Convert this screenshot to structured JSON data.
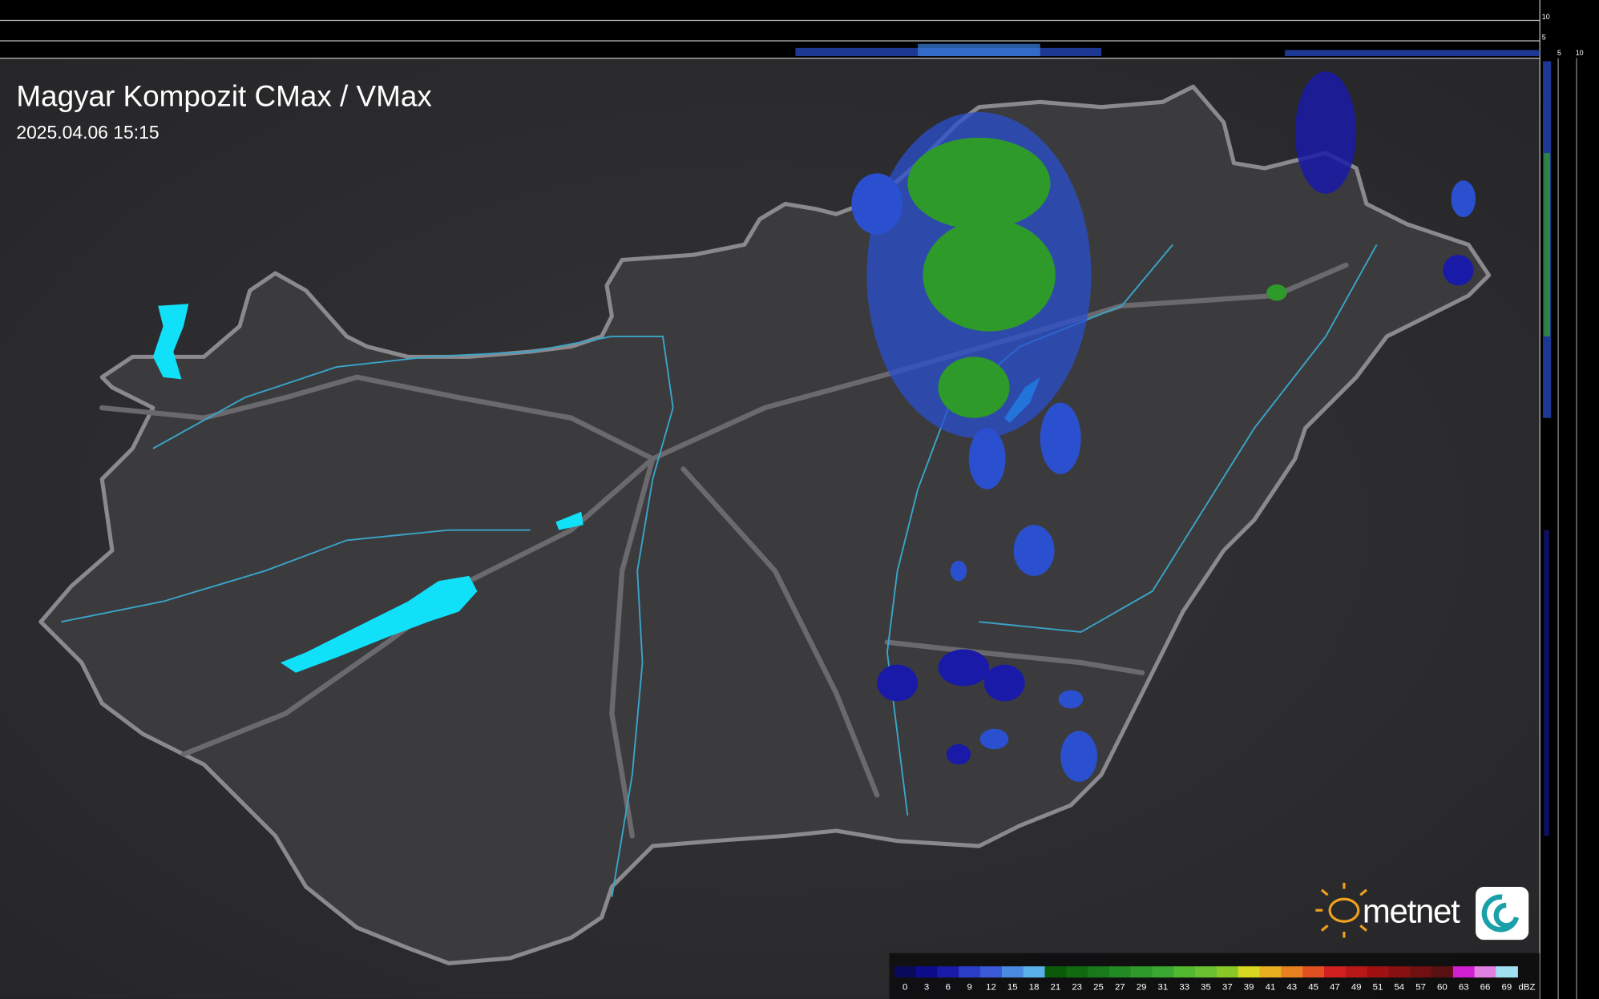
{
  "header": {
    "title": "Magyar Kompozit CMax / VMax",
    "timestamp": "2025.04.06 15:15"
  },
  "side_scale": {
    "top_labels": [
      "10",
      "5"
    ],
    "bottom_labels": [
      "5",
      "10"
    ]
  },
  "logo": {
    "text": "metnet"
  },
  "legend": {
    "labels": [
      0,
      3,
      6,
      9,
      12,
      15,
      18,
      21,
      23,
      25,
      27,
      29,
      31,
      33,
      35,
      37,
      39,
      41,
      43,
      45,
      47,
      49,
      51,
      54,
      57,
      60,
      63,
      66,
      69
    ],
    "colors": [
      "#0a0a5a",
      "#0c0c8a",
      "#1a1aa8",
      "#2a3ec8",
      "#3a5ad8",
      "#4a8ae0",
      "#5ab0e8",
      "#0a5a0a",
      "#0f6a10",
      "#187a18",
      "#228a22",
      "#2e9a2a",
      "#3aa830",
      "#52b830",
      "#6ac030",
      "#8ac828",
      "#d8d820",
      "#e8b020",
      "#e88020",
      "#e05020",
      "#d02020",
      "#b81818",
      "#a01010",
      "#881010",
      "#701010",
      "#581010",
      "#d020d0",
      "#e080e0",
      "#a0e0f0"
    ],
    "unit": "dBZ"
  }
}
